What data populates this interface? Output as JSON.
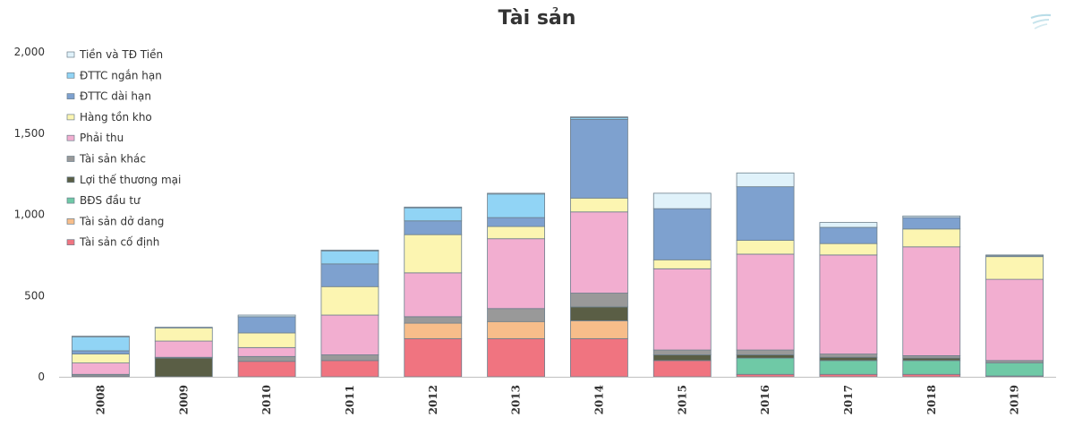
{
  "chart_data": {
    "type": "bar",
    "stacked": true,
    "title": "Tài sản",
    "categories": [
      "2008",
      "2009",
      "2010",
      "2011",
      "2012",
      "2013",
      "2014",
      "2015",
      "2016",
      "2017",
      "2018",
      "2019"
    ],
    "ylim": [
      0,
      2000
    ],
    "yticks": [
      0,
      500,
      1000,
      1500,
      2000
    ],
    "ytick_labels": [
      "0",
      "500",
      "1,000",
      "1,500",
      "2,000"
    ],
    "grid": false,
    "legend_position": "top-left",
    "series": [
      {
        "name": "Tài sản cố định",
        "color": "#f07480",
        "values": [
          5,
          0,
          95,
          100,
          235,
          235,
          235,
          100,
          15,
          15,
          15,
          5
        ]
      },
      {
        "name": "Tài sản dở dang",
        "color": "#f7bd8a",
        "values": [
          0,
          0,
          0,
          0,
          95,
          105,
          110,
          0,
          0,
          0,
          0,
          0
        ]
      },
      {
        "name": "BĐS đầu tư",
        "color": "#6fc9a6",
        "values": [
          0,
          0,
          0,
          0,
          0,
          0,
          0,
          0,
          100,
          85,
          85,
          80
        ]
      },
      {
        "name": "Lợi thế thương mại",
        "color": "#5a5e45",
        "values": [
          0,
          115,
          0,
          0,
          0,
          0,
          85,
          35,
          20,
          20,
          15,
          0
        ]
      },
      {
        "name": "Tài sản khác",
        "color": "#999999",
        "values": [
          10,
          5,
          30,
          35,
          40,
          80,
          85,
          30,
          30,
          20,
          15,
          15
        ]
      },
      {
        "name": "Phải thu",
        "color": "#f2aed0",
        "values": [
          70,
          100,
          55,
          245,
          270,
          430,
          500,
          500,
          590,
          610,
          670,
          500
        ]
      },
      {
        "name": "Hàng tồn kho",
        "color": "#fcf5b1",
        "values": [
          55,
          80,
          90,
          175,
          235,
          75,
          85,
          55,
          85,
          70,
          110,
          140
        ]
      },
      {
        "name": "ĐTTC dài hạn",
        "color": "#7ea1cf",
        "values": [
          20,
          0,
          100,
          140,
          85,
          55,
          485,
          315,
          330,
          100,
          70,
          5
        ]
      },
      {
        "name": "ĐTTC ngắn hạn",
        "color": "#91d4f5",
        "values": [
          85,
          0,
          0,
          80,
          80,
          145,
          10,
          0,
          0,
          0,
          0,
          0
        ]
      },
      {
        "name": "Tiền và TĐ Tiền",
        "color": "#e0f2fa",
        "values": [
          5,
          5,
          10,
          5,
          5,
          5,
          5,
          95,
          85,
          30,
          10,
          5
        ]
      }
    ]
  },
  "legend_order": [
    "Tiền và TĐ Tiền",
    "ĐTTC ngắn hạn",
    "ĐTTC dài hạn",
    "Hàng tồn kho",
    "Phải thu",
    "Tài sản khác",
    "Lợi thế thương mại",
    "BĐS đầu tư",
    "Tài sản dở dang",
    "Tài sản cố định"
  ],
  "logo": {
    "icon": "brand-logo-icon"
  }
}
